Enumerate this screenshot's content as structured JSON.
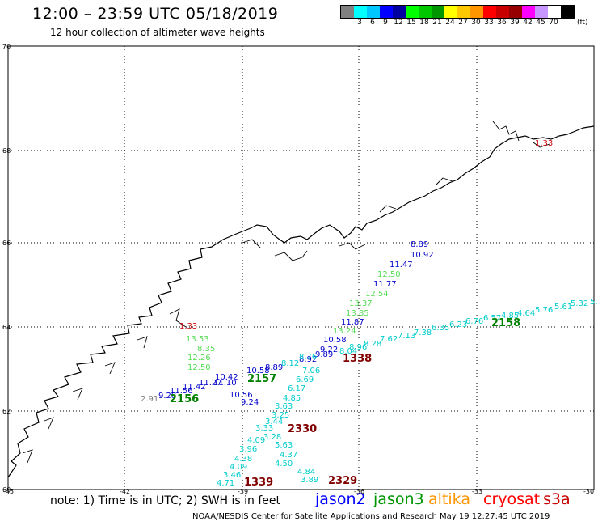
{
  "header": {
    "title": "12:00 – 23:59 UTC 05/18/2019",
    "subtitle": "12 hour collection of altimeter wave heights"
  },
  "legend": {
    "colors": [
      "#808080",
      "#00ffff",
      "#00c8ff",
      "#0000ff",
      "#0000a0",
      "#00ff00",
      "#00c800",
      "#009600",
      "#ffff00",
      "#ffc800",
      "#ff9600",
      "#ff0000",
      "#c80000",
      "#960000",
      "#ff00ff",
      "#c896ff",
      "#ffffff",
      "#000000"
    ],
    "labels": [
      "",
      "3",
      "6",
      "9",
      "12",
      "15",
      "18",
      "21",
      "24",
      "27",
      "30",
      "33",
      "36",
      "39",
      "42",
      "45",
      "70",
      ""
    ],
    "unit": "(ft)"
  },
  "map": {
    "lat_labels": [
      "70",
      "68",
      "66",
      "64",
      "62",
      "60"
    ],
    "lon_labels": [
      "-45",
      "-42",
      "-39",
      "-36",
      "-33",
      "-30"
    ]
  },
  "passes": {
    "jason2": {
      "color": "#0000cc",
      "values": [
        "8.89",
        "10.92",
        "11.47",
        "11.77",
        "11.87",
        "10.58",
        "9.22",
        "9.89",
        "8.92",
        "8.89",
        "10.58",
        "10.42",
        "11.10",
        "11.27",
        "11.42",
        "11.56",
        "9.28",
        "10.56",
        "9.24"
      ],
      "time_label": "2157"
    },
    "jason3": {
      "color": "#008000",
      "values": [
        "12.50",
        "12.54",
        "13.37",
        "13.85",
        "13.24",
        "13.53",
        "8.35",
        "12.26",
        "12.50"
      ],
      "time_label": "2156"
    },
    "s3a": {
      "color": "#00cccc",
      "values": [
        "5.3",
        "5.32",
        "5.61",
        "5.76",
        "4.64",
        "4.85",
        "6.57",
        "6.76",
        "6.23",
        "6.35",
        "7.38",
        "7.13",
        "7.62",
        "8.28",
        "8.96",
        "8.04",
        "8.76",
        "8.12",
        "7.06",
        "6.69",
        "6.17",
        "4.85",
        "3.63",
        "3.25",
        "3.44",
        "3.33",
        "3.28",
        "4.09",
        "3.96",
        "4.38",
        "4.09",
        "3.46",
        "4.71",
        "5.63",
        "4.37",
        "4.50",
        "4.84",
        "3.89"
      ],
      "time_labels": [
        "2158",
        "2330",
        "2329"
      ]
    },
    "cryosat": {
      "color": "#800000",
      "values": [
        "1.33",
        "1.33"
      ],
      "time_labels": [
        "1338",
        "1339"
      ]
    },
    "gray": {
      "color": "#808080",
      "values": [
        "2.91"
      ]
    }
  },
  "footer": {
    "note": "note:  1) Time is in UTC;  2) SWH is in feet",
    "satellites": [
      {
        "name": "jason2",
        "color": "#0000ff"
      },
      {
        "name": "jason3",
        "color": "#009600"
      },
      {
        "name": "altika",
        "color": "#ff9600"
      },
      {
        "name": "cryosat",
        "color": "#ff0000"
      },
      {
        "name": "s3a",
        "color": "#c80000"
      }
    ],
    "credit": "NOAA/NESDIS Center for Satellite Applications and Research    May 19 12:27:45 UTC 2019"
  }
}
